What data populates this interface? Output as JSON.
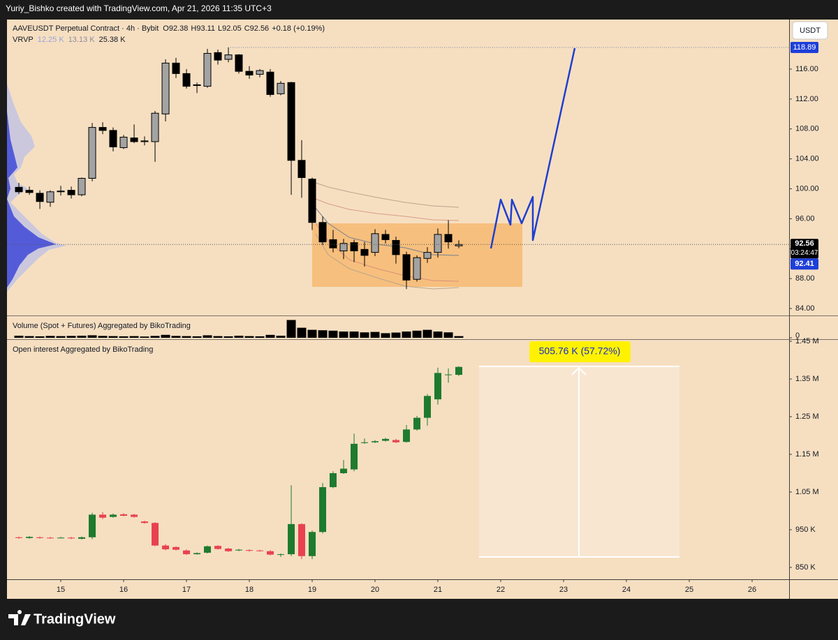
{
  "header": {
    "credit": "Yuriy_Bishko created with TradingView.com, Apr 21, 2026 11:35 UTC+3",
    "symbol": "AAVEUSDT Perpetual Contract · 4h · Bybit",
    "ohlc": [
      "O92.38",
      "H93.11",
      "L92.05",
      "C92.56",
      "+0.18 (+0.19%)"
    ],
    "vrvp": "VRVP",
    "vrvp_values": [
      "12.25 K",
      "13.13 K",
      "25.38 K"
    ],
    "currency": "USDT"
  },
  "chart_data": [
    {
      "type": "candlestick",
      "x": [
        14.333,
        14.5,
        14.667,
        14.833,
        15,
        15.167,
        15.333,
        15.5,
        15.667,
        15.833,
        16,
        16.167,
        16.333,
        16.5,
        16.667,
        16.833,
        17,
        17.167,
        17.333,
        17.5,
        17.667,
        17.833,
        18,
        18.167,
        18.333,
        18.5,
        18.667,
        18.833,
        19,
        19.167,
        19.333,
        19.5,
        19.667,
        19.833,
        20,
        20.167,
        20.333,
        20.5,
        20.667,
        20.833,
        21,
        21.167,
        21.333
      ],
      "open": [
        100.2,
        99.8,
        99.4,
        98.2,
        99.6,
        99.8,
        99.2,
        101.4,
        108.2,
        107.8,
        105.5,
        106.8,
        106.3,
        106.3,
        110,
        116.8,
        115.4,
        113.8,
        113.7,
        118.2,
        117.3,
        117.9,
        115.7,
        115.3,
        115.6,
        112.7,
        114.2,
        103.8,
        101.3,
        95.5,
        93.2,
        91.7,
        92.8,
        91.9,
        91.5,
        93.9,
        93.1,
        91.2,
        87.9,
        90.7,
        91.5,
        93.9,
        92.38
      ],
      "high": [
        100.8,
        100.3,
        99.8,
        99.8,
        100.4,
        100.3,
        101.5,
        108.8,
        108.9,
        108.2,
        107.2,
        108.6,
        107,
        110.4,
        117.3,
        117.5,
        116,
        114.2,
        118.7,
        118.6,
        118.89,
        118,
        116.4,
        116,
        116,
        114.4,
        114.3,
        106.5,
        101.5,
        96.3,
        94.5,
        93.3,
        93.2,
        92.9,
        94.6,
        94.5,
        93.6,
        91.6,
        91.1,
        92.2,
        94.7,
        95.8,
        93.11
      ],
      "low": [
        99.3,
        99.2,
        97.3,
        97.6,
        99.1,
        98.7,
        99,
        101,
        107.3,
        105,
        105.3,
        106.1,
        105.8,
        103.6,
        109,
        114.8,
        113.4,
        112.8,
        113.5,
        116.6,
        116.9,
        115.4,
        114.7,
        114.9,
        112.3,
        112.5,
        99.2,
        98.8,
        94.5,
        92.5,
        91.5,
        90.6,
        90.2,
        89.6,
        91,
        92.7,
        90,
        86.6,
        87.6,
        90.1,
        90.8,
        92,
        92.05
      ],
      "close": [
        99.6,
        99.5,
        98.3,
        99.6,
        99.7,
        99.2,
        101.4,
        108.2,
        107.8,
        105.6,
        106.9,
        106.3,
        106.4,
        110.1,
        116.8,
        115.4,
        113.7,
        113.9,
        118.1,
        117.2,
        117.9,
        115.7,
        115.2,
        115.8,
        112.6,
        114.1,
        103.8,
        101.5,
        95.5,
        92.9,
        92.1,
        92.7,
        91.7,
        91.1,
        94,
        93.2,
        91.2,
        87.8,
        90.8,
        91.5,
        93.9,
        92.9,
        92.56
      ],
      "up_color": "#a3a3a3",
      "down_color": "#000000",
      "border_color": "#000000",
      "xlim": [
        14.144,
        26.589
      ],
      "xticks": [
        15,
        16,
        17,
        18,
        19,
        20,
        21,
        22,
        23,
        24,
        25,
        26
      ],
      "ylim": [
        83.07,
        122.62
      ],
      "yticks": [
        {
          "value": 84,
          "label": "84.00"
        },
        {
          "value": 88,
          "label": "88.00"
        },
        {
          "value": 92,
          "label": "92.00"
        },
        {
          "value": 96,
          "label": "96.00"
        },
        {
          "value": 100,
          "label": "100.00"
        },
        {
          "value": 104,
          "label": "104.00"
        },
        {
          "value": 108,
          "label": "108.00"
        },
        {
          "value": 112,
          "label": "112.00"
        },
        {
          "value": 116,
          "label": "116.00"
        }
      ],
      "high_marker": 118.89,
      "last_price": 92.56,
      "countdown": "03:24:47",
      "second_price": 92.41,
      "marker_color": "#1e3fd8"
    },
    {
      "type": "bar",
      "title": "Volume (Spot + Futures) Aggregated by BikoTrading",
      "x": [
        14.333,
        14.5,
        14.667,
        14.833,
        15,
        15.167,
        15.333,
        15.5,
        15.667,
        15.833,
        16,
        16.167,
        16.333,
        16.5,
        16.667,
        16.833,
        17,
        17.167,
        17.333,
        17.5,
        17.667,
        17.833,
        18,
        18.167,
        18.333,
        18.5,
        18.667,
        18.833,
        19,
        19.167,
        19.333,
        19.5,
        19.667,
        19.833,
        20,
        20.167,
        20.333,
        20.5,
        20.667,
        20.833,
        21,
        21.167,
        21.333
      ],
      "values": [
        10,
        8,
        7,
        9,
        8,
        9,
        10,
        12,
        9,
        8,
        7,
        8,
        6,
        9,
        14,
        9,
        8,
        7,
        12,
        8,
        7,
        10,
        8,
        7,
        14,
        10,
        85,
        48,
        38,
        36,
        34,
        30,
        30,
        26,
        28,
        22,
        25,
        30,
        34,
        38,
        30,
        26,
        8
      ],
      "color": "#000000",
      "ylim": [
        0,
        100
      ],
      "yticks": [
        0
      ]
    },
    {
      "type": "candlestick",
      "title": "Open interest Aggregated by BikoTrading",
      "x": [
        14.333,
        14.5,
        14.667,
        14.833,
        15,
        15.167,
        15.333,
        15.5,
        15.667,
        15.833,
        16,
        16.167,
        16.333,
        16.5,
        16.667,
        16.833,
        17,
        17.167,
        17.333,
        17.5,
        17.667,
        17.833,
        18,
        18.167,
        18.333,
        18.5,
        18.667,
        18.833,
        19,
        19.167,
        19.333,
        19.5,
        19.667,
        19.833,
        20,
        20.167,
        20.333,
        20.5,
        20.667,
        20.833,
        21,
        21.167,
        21.333
      ],
      "open": [
        930000,
        928000,
        930000,
        929000,
        928000,
        929000,
        926000,
        930000,
        990000,
        984000,
        991000,
        990000,
        972000,
        968000,
        908000,
        904000,
        895000,
        885000,
        889000,
        907000,
        900000,
        895000,
        896000,
        895000,
        893000,
        884000,
        885000,
        965000,
        880000,
        944000,
        1063000,
        1100000,
        1110000,
        1180000,
        1182000,
        1186000,
        1188000,
        1183000,
        1216000,
        1247000,
        1296000,
        1362000,
        1361000
      ],
      "high": [
        932000,
        933000,
        932000,
        931000,
        931000,
        931000,
        932000,
        995000,
        997000,
        993000,
        994000,
        992000,
        974000,
        970000,
        912000,
        906000,
        898000,
        890000,
        908000,
        909000,
        902000,
        899000,
        898000,
        897000,
        896000,
        887000,
        1068000,
        967000,
        948000,
        1074000,
        1105000,
        1135000,
        1205000,
        1192000,
        1188000,
        1194000,
        1191000,
        1228000,
        1252000,
        1310000,
        1380000,
        1378000,
        1384000
      ],
      "low": [
        926000,
        926000,
        926000,
        926000,
        927000,
        925000,
        924000,
        925000,
        978000,
        982000,
        986000,
        982000,
        966000,
        906000,
        895000,
        895000,
        883000,
        884000,
        887000,
        897000,
        891000,
        893000,
        892000,
        892000,
        882000,
        878000,
        880000,
        872000,
        872000,
        940000,
        1060000,
        1098000,
        1105000,
        1178000,
        1180000,
        1184000,
        1180000,
        1181000,
        1213000,
        1226000,
        1282000,
        1340000,
        1358000
      ],
      "close": [
        928000,
        931000,
        928000,
        928000,
        929000,
        927000,
        930000,
        990000,
        982000,
        990000,
        987000,
        984000,
        968000,
        908000,
        898000,
        897000,
        885000,
        888000,
        906000,
        899000,
        893000,
        897000,
        894000,
        894000,
        884000,
        885000,
        965000,
        880000,
        944000,
        1063000,
        1100000,
        1112000,
        1178000,
        1182000,
        1185000,
        1191000,
        1182000,
        1216000,
        1247000,
        1305000,
        1366000,
        1362000,
        1382000
      ],
      "up_color": "#1e7a2e",
      "down_color": "#e8424f",
      "ylim": [
        818500,
        1455600
      ],
      "yticks": [
        {
          "value": 850000,
          "label": "850 K"
        },
        {
          "value": 950000,
          "label": "950 K"
        },
        {
          "value": 1050000,
          "label": "1.05 M"
        },
        {
          "value": 1150000,
          "label": "1.15 M"
        },
        {
          "value": 1250000,
          "label": "1.25 M"
        },
        {
          "value": 1350000,
          "label": "1.35 M"
        },
        {
          "value": 1450000,
          "label": "1.45 M"
        }
      ],
      "annotation": "505.76 K (57.72%)"
    }
  ],
  "footer": {
    "logo": "TradingView"
  }
}
